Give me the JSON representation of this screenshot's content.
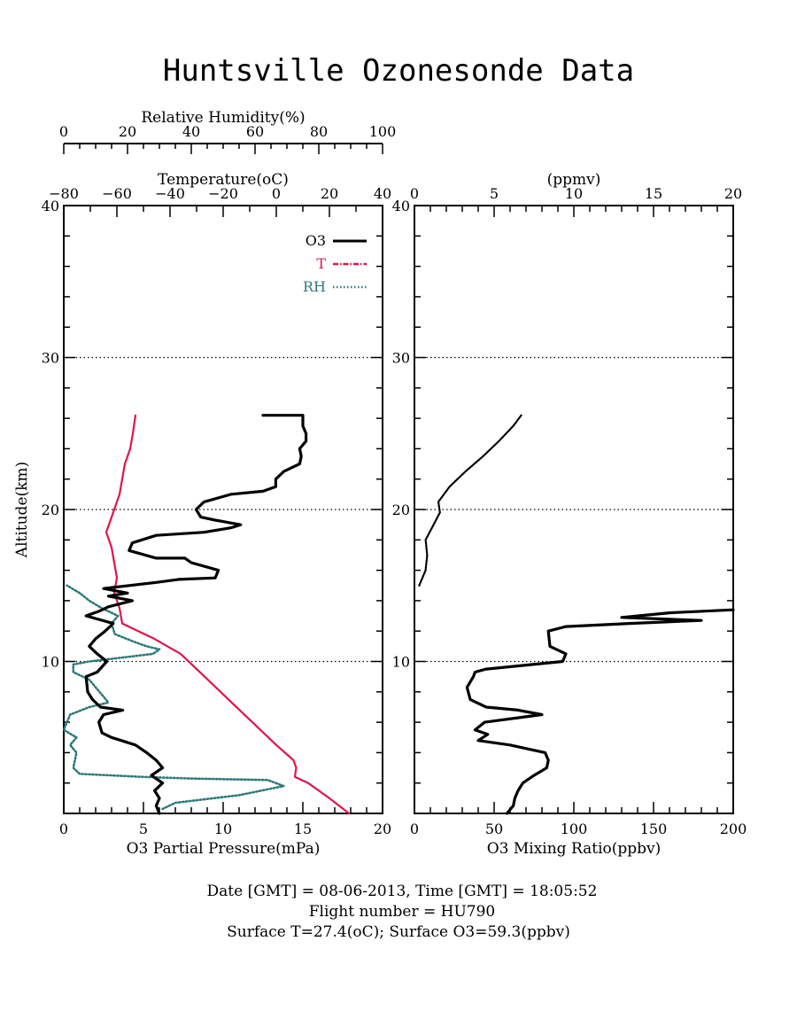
{
  "chart_data": {
    "type": "line",
    "title": "Huntsville Ozonesonde Data",
    "left_panel": {
      "ylabel": "Altitude(km)",
      "ylim": [
        0,
        40
      ],
      "yticks": [
        "10",
        "20",
        "30",
        "40"
      ],
      "xlabel_bottom": "O3 Partial Pressure(mPa)",
      "xlim_bottom": [
        0,
        20
      ],
      "xticks_bottom": [
        "0",
        "5",
        "10",
        "15",
        "20"
      ],
      "xlabel_temperature": "Temperature(oC)",
      "xlim_temperature": [
        -80,
        40
      ],
      "xticks_temperature": [
        "−80",
        "−60",
        "−40",
        "−20",
        "0",
        "20",
        "40"
      ],
      "xlabel_humidity": "Relative Humidity(%)",
      "xlim_humidity": [
        0,
        100
      ],
      "xticks_humidity": [
        "0",
        "20",
        "40",
        "60",
        "80",
        "100"
      ],
      "grid_dotted_at_km": [
        10,
        20,
        30
      ],
      "legend_position": "top-right",
      "legend": [
        {
          "label": "O3",
          "color": "#000000",
          "style": "solid"
        },
        {
          "label": "T",
          "color": "#e0144c",
          "style": "dash-dot"
        },
        {
          "label": "RH",
          "color": "#2e7a7a",
          "style": "dotted"
        }
      ],
      "series": [
        {
          "name": "O3",
          "color": "#000000",
          "x_units": "mPa",
          "points": [
            [
              6.0,
              0
            ],
            [
              5.8,
              0.5
            ],
            [
              6.0,
              1
            ],
            [
              5.7,
              1.5
            ],
            [
              6.2,
              2
            ],
            [
              5.5,
              2.5
            ],
            [
              6.2,
              3
            ],
            [
              5.8,
              3.5
            ],
            [
              5.2,
              4
            ],
            [
              4.5,
              4.5
            ],
            [
              3.0,
              5
            ],
            [
              2.4,
              5.3
            ],
            [
              2.2,
              6
            ],
            [
              2.5,
              6.5
            ],
            [
              3.7,
              6.8
            ],
            [
              2.3,
              7
            ],
            [
              1.8,
              7.5
            ],
            [
              1.5,
              8
            ],
            [
              1.4,
              9
            ],
            [
              2.1,
              9.3
            ],
            [
              2.7,
              10
            ],
            [
              2.1,
              10.5
            ],
            [
              1.6,
              11
            ],
            [
              2.0,
              11.5
            ],
            [
              2.6,
              12
            ],
            [
              3.1,
              12.5
            ],
            [
              1.4,
              13
            ],
            [
              2.2,
              13.3
            ],
            [
              2.8,
              13.6
            ],
            [
              4.3,
              14
            ],
            [
              2.8,
              14.3
            ],
            [
              4.0,
              14.5
            ],
            [
              2.5,
              14.8
            ],
            [
              5.8,
              15.2
            ],
            [
              7.2,
              15.4
            ],
            [
              9.5,
              15.5
            ],
            [
              9.7,
              16
            ],
            [
              8.0,
              16.5
            ],
            [
              7.6,
              16.8
            ],
            [
              5.8,
              16.8
            ],
            [
              4.1,
              17.3
            ],
            [
              4.3,
              17.8
            ],
            [
              5.8,
              18.3
            ],
            [
              8.8,
              18.5
            ],
            [
              10.5,
              18.8
            ],
            [
              11.1,
              19
            ],
            [
              9.5,
              19.3
            ],
            [
              8.6,
              19.5
            ],
            [
              8.3,
              20
            ],
            [
              8.8,
              20.5
            ],
            [
              10.5,
              21
            ],
            [
              12.5,
              21.2
            ],
            [
              13.3,
              21.5
            ],
            [
              13.3,
              22
            ],
            [
              13.8,
              22.5
            ],
            [
              14.8,
              23
            ],
            [
              14.9,
              23.5
            ],
            [
              14.8,
              24
            ],
            [
              15.2,
              24.5
            ],
            [
              15.2,
              25
            ],
            [
              15.0,
              25.5
            ],
            [
              15.0,
              26.2
            ],
            [
              12.5,
              26.2
            ]
          ]
        },
        {
          "name": "T",
          "color": "#e0144c",
          "x_units": "degC",
          "points": [
            [
              27.4,
              0
            ],
            [
              20.0,
              1.0
            ],
            [
              12.0,
              2.0
            ],
            [
              7.0,
              2.4
            ],
            [
              7.5,
              3.0
            ],
            [
              6.5,
              3.5
            ],
            [
              0.0,
              4.5
            ],
            [
              -9.0,
              6.0
            ],
            [
              -18.0,
              7.5
            ],
            [
              -27.0,
              9.0
            ],
            [
              -36.0,
              10.5
            ],
            [
              -46.0,
              11.5
            ],
            [
              -52.0,
              12.0
            ],
            [
              -58.0,
              12.5
            ],
            [
              -59.0,
              13.5
            ],
            [
              -61.0,
              14.5
            ],
            [
              -60.0,
              15.5
            ],
            [
              -61.0,
              16.5
            ],
            [
              -62.0,
              17.5
            ],
            [
              -64.0,
              18.5
            ],
            [
              -62.0,
              19.5
            ],
            [
              -61.0,
              20.0
            ],
            [
              -59.0,
              21.0
            ],
            [
              -58.0,
              22.0
            ],
            [
              -57.0,
              23.0
            ],
            [
              -55.0,
              24.0
            ],
            [
              -54.0,
              25.0
            ],
            [
              -53.0,
              26.2
            ]
          ]
        },
        {
          "name": "RH",
          "color": "#2e7a7a",
          "x_units": "percent",
          "points": [
            [
              31,
              0.3
            ],
            [
              35,
              0.7
            ],
            [
              55,
              1.2
            ],
            [
              69,
              1.8
            ],
            [
              64,
              2.2
            ],
            [
              40,
              2.3
            ],
            [
              25,
              2.4
            ],
            [
              5,
              2.6
            ],
            [
              3,
              3.0
            ],
            [
              4,
              4.0
            ],
            [
              2,
              4.5
            ],
            [
              4,
              5.0
            ],
            [
              0,
              5.5
            ],
            [
              2,
              6.5
            ],
            [
              8,
              7.0
            ],
            [
              14,
              7.3
            ],
            [
              12,
              7.8
            ],
            [
              10,
              8.3
            ],
            [
              8,
              8.8
            ],
            [
              3,
              9.3
            ],
            [
              3,
              9.8
            ],
            [
              8,
              10.0
            ],
            [
              20,
              10.3
            ],
            [
              28,
              10.5
            ],
            [
              30,
              10.8
            ],
            [
              26,
              11.0
            ],
            [
              22,
              11.3
            ],
            [
              16,
              11.8
            ],
            [
              15,
              12.5
            ],
            [
              17,
              13.0
            ],
            [
              12,
              13.5
            ],
            [
              8,
              14.0
            ],
            [
              5,
              14.5
            ],
            [
              1,
              15.0
            ]
          ]
        }
      ]
    },
    "right_panel": {
      "xlabel_bottom": "O3 Mixing Ratio(ppbv)",
      "xlim_bottom": [
        0,
        200
      ],
      "xticks_bottom": [
        "0",
        "50",
        "100",
        "150",
        "200"
      ],
      "xlabel_top": "(ppmv)",
      "xlim_top": [
        0,
        20
      ],
      "xticks_top": [
        "0",
        "5",
        "10",
        "15",
        "20"
      ],
      "ylim": [
        0,
        40
      ],
      "yticks": [
        "10",
        "20",
        "30",
        "40"
      ],
      "grid_dotted_at_km": [
        10,
        20,
        30
      ],
      "series": [
        {
          "name": "O3 ppbv",
          "color": "#000000",
          "x_units": "ppbv",
          "points": [
            [
              58,
              0
            ],
            [
              62,
              0.5
            ],
            [
              63,
              1
            ],
            [
              65,
              1.5
            ],
            [
              68,
              2
            ],
            [
              75,
              2.5
            ],
            [
              83,
              3
            ],
            [
              84,
              3.5
            ],
            [
              82,
              4
            ],
            [
              60,
              4.5
            ],
            [
              40,
              4.8
            ],
            [
              46,
              5.2
            ],
            [
              38,
              5.5
            ],
            [
              44,
              6
            ],
            [
              80,
              6.5
            ],
            [
              65,
              6.8
            ],
            [
              45,
              7
            ],
            [
              35,
              7.5
            ],
            [
              33,
              8.3
            ],
            [
              37,
              9
            ],
            [
              38,
              9.3
            ],
            [
              45,
              9.5
            ],
            [
              93,
              10
            ],
            [
              95,
              10.5
            ],
            [
              85,
              11
            ],
            [
              84,
              12
            ],
            [
              95,
              12.3
            ],
            [
              135,
              12.5
            ],
            [
              180,
              12.7
            ],
            [
              130,
              12.9
            ],
            [
              160,
              13.2
            ],
            [
              200,
              13.4
            ]
          ]
        },
        {
          "name": "O3 ppmv",
          "color": "#000000",
          "x_units": "ppmv",
          "points": [
            [
              0.3,
              15.0
            ],
            [
              0.7,
              16.0
            ],
            [
              0.8,
              17.0
            ],
            [
              0.7,
              18.0
            ],
            [
              1.2,
              19.0
            ],
            [
              1.6,
              19.8
            ],
            [
              1.5,
              20.5
            ],
            [
              2.2,
              21.5
            ],
            [
              3.2,
              22.5
            ],
            [
              4.3,
              23.5
            ],
            [
              5.3,
              24.5
            ],
            [
              6.2,
              25.5
            ],
            [
              6.7,
              26.2
            ]
          ]
        }
      ]
    },
    "footer": {
      "line1": "Date [GMT] = 08-06-2013,  Time [GMT] = 18:05:52",
      "line2": "Flight number = HU790",
      "line3": "Surface T=27.4(oC); Surface O3=59.3(ppbv)"
    }
  }
}
